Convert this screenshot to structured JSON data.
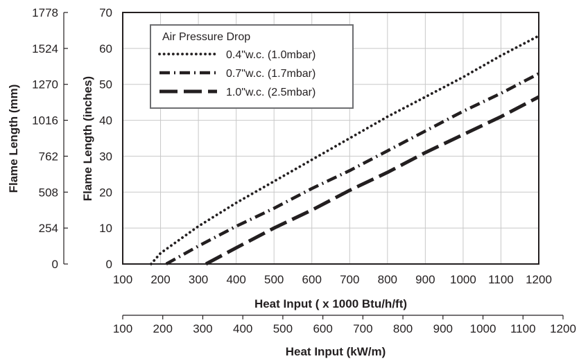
{
  "chart_data": {
    "type": "line",
    "x_top": {
      "label": "Heat Input ( x 1000 Btu/h/ft)",
      "range": [
        100,
        1200
      ],
      "ticks": [
        "100",
        "200",
        "300",
        "400",
        "500",
        "600",
        "700",
        "800",
        "900",
        "1000",
        "1100",
        "1200"
      ]
    },
    "x_bottom": {
      "label": "Heat Input (kW/m)",
      "range": [
        100,
        1200
      ],
      "ticks": [
        "100",
        "200",
        "300",
        "400",
        "500",
        "600",
        "700",
        "800",
        "900",
        "1000",
        "1100",
        "1200"
      ]
    },
    "y_right": {
      "label": "Flame Length (inches)",
      "range": [
        0,
        70
      ],
      "ticks": [
        "0",
        "10",
        "20",
        "30",
        "40",
        "50",
        "60",
        "70"
      ]
    },
    "y_left": {
      "label": "Flame Length (mm)",
      "range": [
        0,
        1778
      ],
      "ticks": [
        "0",
        "254",
        "508",
        "762",
        "1016",
        "1270",
        "1524",
        "1778"
      ]
    },
    "grid": true,
    "legend": {
      "title": "Air Pressure Drop",
      "placement": "top-left"
    },
    "series": [
      {
        "name": "0.4\"w.c. (1.0mbar)",
        "style": "dotted",
        "x": [
          175,
          200,
          300,
          400,
          500,
          600,
          700,
          800,
          900,
          1000,
          1100,
          1200
        ],
        "y": [
          0,
          3,
          10.5,
          17,
          23,
          29,
          35,
          41,
          46.5,
          52,
          58,
          63.5
        ]
      },
      {
        "name": "0.7\"w.c. (1.7mbar)",
        "style": "dash-dot",
        "x": [
          215,
          300,
          400,
          500,
          600,
          700,
          800,
          900,
          1000,
          1100,
          1200
        ],
        "y": [
          0,
          5,
          10.5,
          15.5,
          21,
          26,
          31.5,
          37,
          42.5,
          47.5,
          53
        ]
      },
      {
        "name": "1.0\"w.c. (2.5mbar)",
        "style": "dashed",
        "x": [
          320,
          400,
          500,
          600,
          700,
          800,
          900,
          1000,
          1100,
          1200
        ],
        "y": [
          0,
          4.5,
          10,
          15,
          20.5,
          25.5,
          31,
          36,
          41,
          46.5
        ]
      }
    ],
    "colors": {
      "line": "#231f20",
      "grid": "#c8c8c8"
    }
  }
}
